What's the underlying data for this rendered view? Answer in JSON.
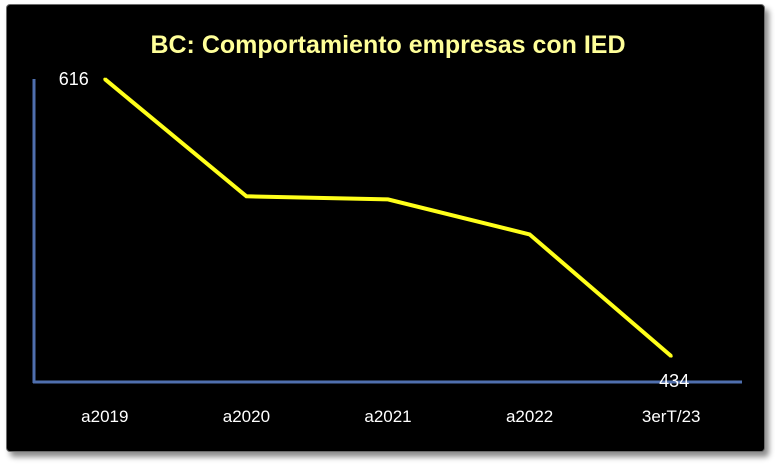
{
  "colors": {
    "background": "#000000",
    "title": "#ffff99",
    "line": "#ffff1a",
    "axis": "#4f6fae",
    "text": "#ffffff"
  },
  "chart_data": {
    "type": "line",
    "title": "BC: Comportamiento empresas con IED",
    "xlabel": "",
    "ylabel": "",
    "categories": [
      "a2019",
      "a2020",
      "a2021",
      "a2022",
      "3erT/23"
    ],
    "series": [
      {
        "values": [
          616,
          539,
          537,
          514,
          434
        ]
      }
    ],
    "data_labels": [
      {
        "index": 0,
        "text": "616"
      },
      {
        "index": 4,
        "text": "434"
      }
    ],
    "ylim": [
      417,
      622
    ],
    "grid": false,
    "legend": "none",
    "y_tick_labels_shown": false
  }
}
